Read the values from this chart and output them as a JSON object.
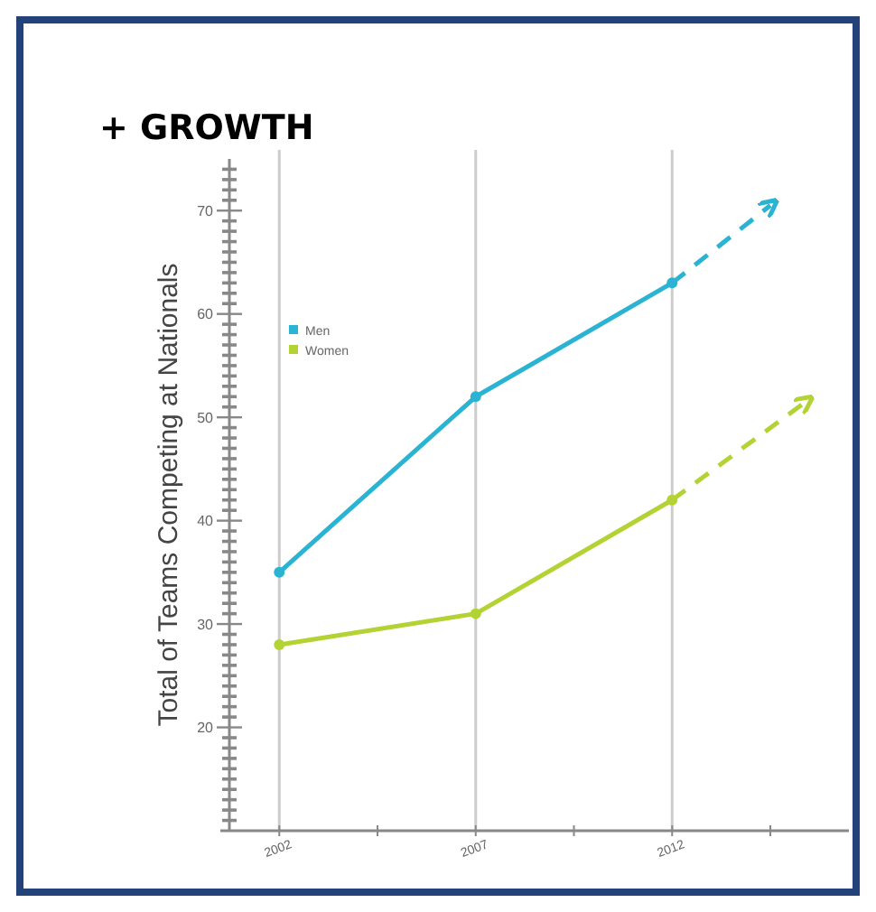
{
  "chart_data": {
    "type": "line",
    "title": "+ GROWTH",
    "ylabel": "Total of Teams Competing at Nationals",
    "x": [
      2002,
      2007,
      2012
    ],
    "series": [
      {
        "name": "Men",
        "color": "#2bb3d4",
        "values": [
          35,
          52,
          63
        ]
      },
      {
        "name": "Women",
        "color": "#b3d334",
        "values": [
          28,
          31,
          42
        ]
      },
      {
        "color": "#2bb3d4",
        "x": [
          2012,
          2014.5
        ],
        "values": [
          63,
          70.5
        ],
        "line_style": "dashed",
        "marker": "none"
      },
      {
        "color": "#b3d334",
        "x": [
          2012,
          2015.4
        ],
        "values": [
          42,
          51.5
        ],
        "line_style": "dashed",
        "marker": "none"
      }
    ],
    "xlim": [
      2000.5,
      2016.5
    ],
    "xticks": [
      {
        "value": 2002,
        "label": "2002"
      },
      {
        "value": 2004.5,
        "label": null
      },
      {
        "value": 2007,
        "label": "2007"
      },
      {
        "value": 2009.5,
        "label": null
      },
      {
        "value": 2012,
        "label": "2012"
      },
      {
        "value": 2014.5,
        "label": null
      }
    ],
    "ylim": [
      10,
      75
    ],
    "yticks": [
      {
        "value": 11,
        "label": null
      },
      {
        "value": 12,
        "label": null
      },
      {
        "value": 13,
        "label": null
      },
      {
        "value": 14,
        "label": null
      },
      {
        "value": 15,
        "label": null
      },
      {
        "value": 16,
        "label": null
      },
      {
        "value": 17,
        "label": null
      },
      {
        "value": 18,
        "label": null
      },
      {
        "value": 19,
        "label": null
      },
      20,
      {
        "value": 21,
        "label": null
      },
      {
        "value": 22,
        "label": null
      },
      {
        "value": 23,
        "label": null
      },
      {
        "value": 24,
        "label": null
      },
      {
        "value": 25,
        "label": null
      },
      {
        "value": 26,
        "label": null
      },
      {
        "value": 27,
        "label": null
      },
      {
        "value": 28,
        "label": null
      },
      {
        "value": 29,
        "label": null
      },
      30,
      {
        "value": 31,
        "label": null
      },
      {
        "value": 32,
        "label": null
      },
      {
        "value": 33,
        "label": null
      },
      {
        "value": 34,
        "label": null
      },
      {
        "value": 35,
        "label": null
      },
      {
        "value": 36,
        "label": null
      },
      {
        "value": 37,
        "label": null
      },
      {
        "value": 38,
        "label": null
      },
      {
        "value": 39,
        "label": null
      },
      40,
      {
        "value": 41,
        "label": null
      },
      {
        "value": 42,
        "label": null
      },
      {
        "value": 43,
        "label": null
      },
      {
        "value": 44,
        "label": null
      },
      {
        "value": 45,
        "label": null
      },
      {
        "value": 46,
        "label": null
      },
      {
        "value": 47,
        "label": null
      },
      {
        "value": 48,
        "label": null
      },
      {
        "value": 49,
        "label": null
      },
      50,
      {
        "value": 51,
        "label": null
      },
      {
        "value": 52,
        "label": null
      },
      {
        "value": 53,
        "label": null
      },
      {
        "value": 54,
        "label": null
      },
      {
        "value": 55,
        "label": null
      },
      {
        "value": 56,
        "label": null
      },
      {
        "value": 57,
        "label": null
      },
      {
        "value": 58,
        "label": null
      },
      {
        "value": 59,
        "label": null
      },
      60,
      {
        "value": 61,
        "label": null
      },
      {
        "value": 62,
        "label": null
      },
      {
        "value": 63,
        "label": null
      },
      {
        "value": 64,
        "label": null
      },
      {
        "value": 65,
        "label": null
      },
      {
        "value": 66,
        "label": null
      },
      {
        "value": 67,
        "label": null
      },
      {
        "value": 68,
        "label": null
      },
      {
        "value": 69,
        "label": null
      },
      70,
      {
        "value": 71,
        "label": null
      },
      {
        "value": 72,
        "label": null
      },
      {
        "value": 73,
        "label": null
      },
      {
        "value": 74,
        "label": null
      }
    ],
    "grid": "x",
    "legend": "top left",
    "marker": "circle",
    "line_style": "solid"
  }
}
